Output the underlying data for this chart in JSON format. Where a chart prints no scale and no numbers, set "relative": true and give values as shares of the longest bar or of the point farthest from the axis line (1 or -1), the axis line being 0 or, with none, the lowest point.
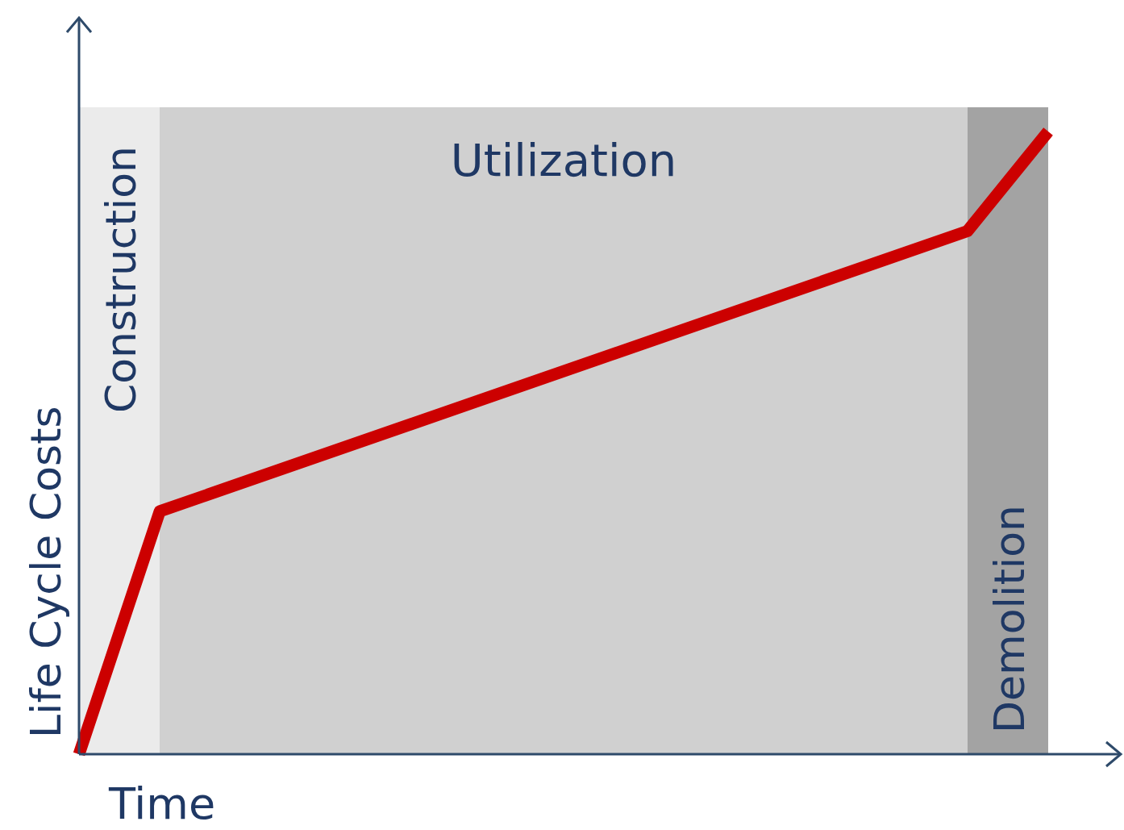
{
  "chart_data": {
    "type": "line",
    "xlabel": "Time",
    "ylabel": "Life Cycle Costs",
    "relative": true,
    "line_style": "solid",
    "categories": [
      null,
      null,
      null,
      null,
      null,
      null,
      null,
      null,
      null,
      null,
      null,
      null,
      null
    ],
    "series": [
      {
        "color": "#cc0000",
        "values": [
          0,
          0.39,
          null,
          null,
          null,
          null,
          null,
          null,
          null,
          null,
          null,
          0.84,
          1
        ]
      }
    ],
    "annotations": [
      "Construction",
      "Utilization",
      "Demolition"
    ]
  }
}
